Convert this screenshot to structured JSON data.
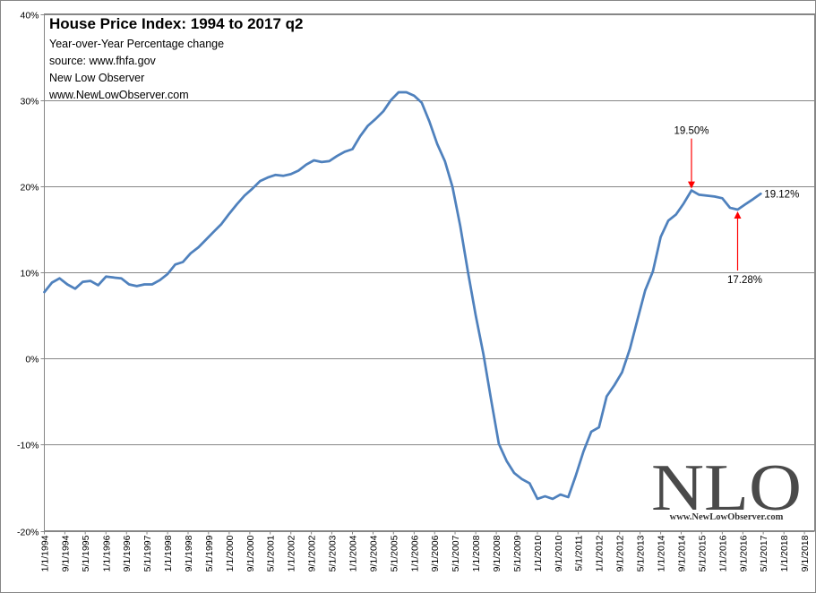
{
  "chart_data": {
    "type": "line",
    "title": "House Price Index: 1994 to 2017 q2",
    "subtitle_lines": [
      "Year-over-Year Percentage change",
      "source: www.fhfa.gov",
      "New Low Observer",
      "www.NewLowObserver.com"
    ],
    "ylim": [
      -20,
      40
    ],
    "y_ticks": [
      "-20%",
      "-10%",
      "0%",
      "10%",
      "20%",
      "30%",
      "40%"
    ],
    "y_tick_values": [
      -20,
      -10,
      0,
      10,
      20,
      30,
      40
    ],
    "x_ticks": [
      "1/1/1994",
      "9/1/1994",
      "5/1/1995",
      "1/1/1996",
      "9/1/1996",
      "5/1/1997",
      "1/1/1998",
      "9/1/1998",
      "5/1/1999",
      "1/1/2000",
      "9/1/2000",
      "5/1/2001",
      "1/1/2002",
      "9/1/2002",
      "5/1/2003",
      "1/1/2004",
      "9/1/2004",
      "5/1/2005",
      "1/1/2006",
      "9/1/2006",
      "5/1/2007",
      "1/1/2008",
      "9/1/2008",
      "5/1/2009",
      "1/1/2010",
      "9/1/2010",
      "5/1/2011",
      "1/1/2012",
      "9/1/2012",
      "5/1/2013",
      "1/1/2014",
      "9/1/2014",
      "5/1/2015",
      "1/1/2016",
      "9/1/2016",
      "5/1/2017",
      "1/1/2018",
      "9/1/2018"
    ],
    "xlim": [
      "1/1/1994",
      "12/31/2018"
    ],
    "grid": "horizontal",
    "series": [
      {
        "color": "#4f81bd",
        "points": [
          [
            "1/1/1994",
            7.7
          ],
          [
            "4/1/1994",
            8.8
          ],
          [
            "7/1/1994",
            9.3
          ],
          [
            "10/1/1994",
            8.6
          ],
          [
            "1/1/1995",
            8.1
          ],
          [
            "4/1/1995",
            8.9
          ],
          [
            "7/1/1995",
            9.0
          ],
          [
            "10/1/1995",
            8.5
          ],
          [
            "1/1/1996",
            9.5
          ],
          [
            "4/1/1996",
            9.4
          ],
          [
            "7/1/1996",
            9.3
          ],
          [
            "10/1/1996",
            8.6
          ],
          [
            "1/1/1997",
            8.4
          ],
          [
            "4/1/1997",
            8.6
          ],
          [
            "7/1/1997",
            8.6
          ],
          [
            "10/1/1997",
            9.1
          ],
          [
            "1/1/1998",
            9.8
          ],
          [
            "4/1/1998",
            10.9
          ],
          [
            "7/1/1998",
            11.2
          ],
          [
            "10/1/1998",
            12.2
          ],
          [
            "1/1/1999",
            12.9
          ],
          [
            "4/1/1999",
            13.8
          ],
          [
            "7/1/1999",
            14.7
          ],
          [
            "10/1/1999",
            15.6
          ],
          [
            "1/1/2000",
            16.8
          ],
          [
            "4/1/2000",
            17.9
          ],
          [
            "7/1/2000",
            18.9
          ],
          [
            "10/1/2000",
            19.7
          ],
          [
            "1/1/2001",
            20.6
          ],
          [
            "4/1/2001",
            21.0
          ],
          [
            "7/1/2001",
            21.3
          ],
          [
            "10/1/2001",
            21.2
          ],
          [
            "1/1/2002",
            21.4
          ],
          [
            "4/1/2002",
            21.8
          ],
          [
            "7/1/2002",
            22.5
          ],
          [
            "10/1/2002",
            23.0
          ],
          [
            "1/1/2003",
            22.8
          ],
          [
            "4/1/2003",
            22.9
          ],
          [
            "7/1/2003",
            23.5
          ],
          [
            "10/1/2003",
            24.0
          ],
          [
            "1/1/2004",
            24.3
          ],
          [
            "4/1/2004",
            25.8
          ],
          [
            "7/1/2004",
            27.0
          ],
          [
            "10/1/2004",
            27.8
          ],
          [
            "1/1/2005",
            28.7
          ],
          [
            "4/1/2005",
            30.0
          ],
          [
            "7/1/2005",
            30.9
          ],
          [
            "10/1/2005",
            30.9
          ],
          [
            "1/1/2006",
            30.5
          ],
          [
            "4/1/2006",
            29.7
          ],
          [
            "7/1/2006",
            27.5
          ],
          [
            "10/1/2006",
            24.9
          ],
          [
            "1/1/2007",
            22.9
          ],
          [
            "4/1/2007",
            19.9
          ],
          [
            "7/1/2007",
            15.4
          ],
          [
            "10/1/2007",
            10.0
          ],
          [
            "1/1/2008",
            5.0
          ],
          [
            "4/1/2008",
            0.5
          ],
          [
            "7/1/2008",
            -4.8
          ],
          [
            "10/1/2008",
            -9.9
          ],
          [
            "1/1/2009",
            -11.9
          ],
          [
            "4/1/2009",
            -13.3
          ],
          [
            "7/1/2009",
            -14.0
          ],
          [
            "10/1/2009",
            -14.5
          ],
          [
            "1/1/2010",
            -16.3
          ],
          [
            "4/1/2010",
            -16.0
          ],
          [
            "7/1/2010",
            -16.3
          ],
          [
            "10/1/2010",
            -15.8
          ],
          [
            "1/1/2011",
            -16.1
          ],
          [
            "4/1/2011",
            -13.6
          ],
          [
            "7/1/2011",
            -10.8
          ],
          [
            "10/1/2011",
            -8.5
          ],
          [
            "1/1/2012",
            -8.0
          ],
          [
            "4/1/2012",
            -4.4
          ],
          [
            "7/1/2012",
            -3.1
          ],
          [
            "10/1/2012",
            -1.6
          ],
          [
            "1/1/2013",
            1.1
          ],
          [
            "4/1/2013",
            4.5
          ],
          [
            "7/1/2013",
            7.9
          ],
          [
            "10/1/2013",
            10.1
          ],
          [
            "1/1/2014",
            14.1
          ],
          [
            "4/1/2014",
            16.0
          ],
          [
            "7/1/2014",
            16.7
          ],
          [
            "10/1/2014",
            18.0
          ],
          [
            "1/1/2015",
            19.5
          ],
          [
            "4/1/2015",
            19.0
          ],
          [
            "7/1/2015",
            18.9
          ],
          [
            "10/1/2015",
            18.8
          ],
          [
            "1/1/2016",
            18.6
          ],
          [
            "4/1/2016",
            17.5
          ],
          [
            "7/1/2016",
            17.28
          ],
          [
            "10/1/2016",
            17.9
          ],
          [
            "1/1/2017",
            18.5
          ],
          [
            "4/1/2017",
            19.12
          ]
        ]
      }
    ],
    "annotations": [
      {
        "text": "19.50%",
        "x": "1/1/2015",
        "y": 19.5,
        "arrow_color": "#ff0000",
        "text_position": "above"
      },
      {
        "text": "17.28%",
        "x": "7/1/2016",
        "y": 17.28,
        "arrow_color": "#ff0000",
        "text_position": "below"
      },
      {
        "text": "19.12%",
        "x": "4/1/2017",
        "y": 19.12,
        "text_position": "right"
      }
    ]
  },
  "watermark": {
    "logo_text": "NLO",
    "url_text": "www.NewLowObserver.com",
    "color": "#4a4a4a"
  }
}
